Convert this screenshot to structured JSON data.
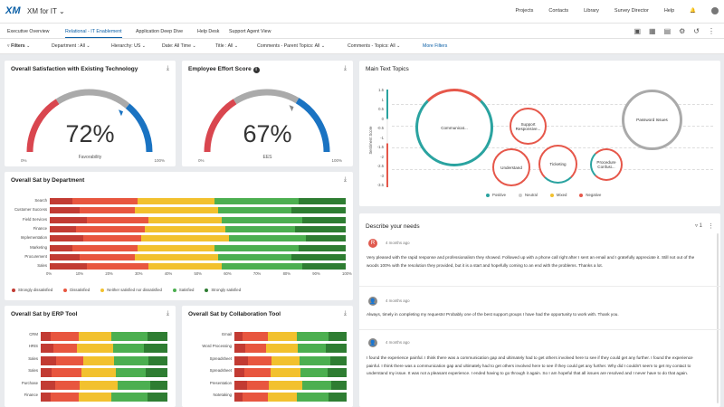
{
  "app": {
    "logo": "XM",
    "title": "XM for IT",
    "title_caret": "⌄"
  },
  "topnav": [
    "Projects",
    "Contacts",
    "Library",
    "Survey Director",
    "Help"
  ],
  "tabs": [
    {
      "label": "Executive Overview",
      "active": false
    },
    {
      "label": "Relational - IT Enablement",
      "active": true
    },
    {
      "label": "Application Deep Dive",
      "active": false
    },
    {
      "label": "Help Desk",
      "active": false
    },
    {
      "label": "Support Agent View",
      "active": false
    }
  ],
  "filters": {
    "label": "Filters",
    "items": [
      "Department : All",
      "Hierarchy: US",
      "Date: All Time",
      "Title : All",
      "Comments - Parent Topics: All",
      "Comments - Topics: All"
    ],
    "more": "More Filters"
  },
  "gauges": [
    {
      "title": "Overall Satisfaction with Existing Technology",
      "value_label": "72%",
      "value": 72,
      "subtitle": "Favorability",
      "min": "0%",
      "max": "100%",
      "colors": [
        "#d9464f",
        "#aaaaaa",
        "#1a73c2"
      ]
    },
    {
      "title": "Employee Effort Score",
      "value_label": "67%",
      "value": 67,
      "subtitle": "EES",
      "min": "0%",
      "max": "100%",
      "colors": [
        "#d9464f",
        "#aaaaaa",
        "#1a73c2"
      ]
    }
  ],
  "dept": {
    "title": "Overall Sat by Department",
    "categories": [
      "Search",
      "Customer Success",
      "Field Services",
      "Finance",
      "Implementation",
      "Marketing",
      "Procurement",
      "Sales"
    ],
    "x_ticks": [
      "0%",
      "10%",
      "20%",
      "30%",
      "40%",
      "50%",
      "60%",
      "70%",
      "80%",
      "90%",
      "100%"
    ],
    "legend": [
      "Strongly dissatisfied",
      "Dissatisfied",
      "Neither satisfied nor dissatisfied",
      "Satisfied",
      "Strongly satisfied"
    ],
    "colors": [
      "#c23b33",
      "#e8563f",
      "#f2c12e",
      "#4caf50",
      "#2e7d32"
    ]
  },
  "text_topics": {
    "title": "Main Text Topics",
    "y_label": "Sentiment Score",
    "y_ticks": [
      "1.5",
      "1",
      "0.5",
      "0",
      "-0.5",
      "-1",
      "-1.5",
      "-2",
      "-2.5",
      "-3",
      "-3.5"
    ],
    "bubbles": [
      {
        "label": "Communicat...",
        "pos_color": "#2aa3a0",
        "neg_color": "#e6574a"
      },
      {
        "label": "Support Responsive...",
        "pos_color": "#e6574a",
        "neg_color": "#e6574a"
      },
      {
        "label": "Understand",
        "pos_color": "#e6574a",
        "neg_color": "#e6574a"
      },
      {
        "label": "Ticketing",
        "pos_color": "#e6574a",
        "neg_color": "#2aa3a0"
      },
      {
        "label": "Procedure Confusi...",
        "pos_color": "#e6574a",
        "neg_color": "#2aa3a0"
      },
      {
        "label": "Password Issues",
        "pos_color": "#aaaaaa",
        "neg_color": "#aaaaaa"
      }
    ],
    "legend": [
      {
        "label": "Positive",
        "color": "#2aa3a0"
      },
      {
        "label": "Neutral",
        "color": "#cccccc"
      },
      {
        "label": "Mixed",
        "color": "#f2c12e"
      },
      {
        "label": "Negative",
        "color": "#e6574a"
      }
    ]
  },
  "needs": {
    "title": "Describe your needs",
    "filter_count": "1",
    "comments": [
      {
        "avatar": "R",
        "ago": "4 months ago",
        "text": "Very pleased with the rapid response and professionalism they showed. Followed up with a phone call right after I sent an email and I gratefully appreciate it. Still not out of the woods 100% with the resolution they provided, but it is a start and hopefully coming to an end with the problems. Thanks a lot."
      },
      {
        "avatar": "",
        "ago": "4 months ago",
        "text": "Always, timely in completing my requests! Probably one of the best support groups I have had the opportunity to work with. Thank you."
      },
      {
        "avatar": "",
        "ago": "4 months ago",
        "text": "I found the experience painful. I think there was a communication gap and ultimately had to get others involved here to see if they could get any further. I found the experience painful. I think there was a communication gap and ultimately had to get others involved here to see if they could get any further. Why did I couldn't seem to get my contact to understand my issue. It was not a pleasant experience. I ended having to go through it again. So I am hopeful that all issues are resolved and I never have to do that again."
      }
    ]
  },
  "erp": {
    "title": "Overall Sat by ERP Tool",
    "categories": [
      "CRM",
      "HRIS",
      "Sales",
      "Sales",
      "Purchase",
      "Finance"
    ]
  },
  "collab": {
    "title": "Overall Sat by Collaboration Tool",
    "categories": [
      "Email",
      "Word Processing",
      "Spreadsheet",
      "Spreadsheet",
      "Presentation",
      "Notetaking"
    ]
  },
  "icons": {
    "download": "download-icon",
    "info": "info-icon",
    "filter": "filter-icon",
    "bell": "bell-icon",
    "user": "user-icon"
  }
}
